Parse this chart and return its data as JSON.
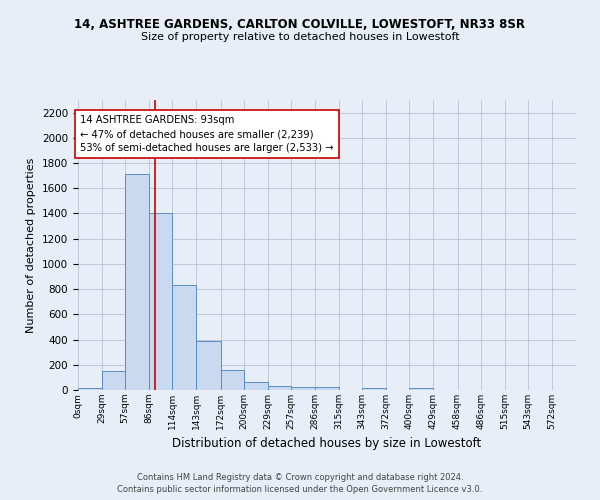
{
  "title1": "14, ASHTREE GARDENS, CARLTON COLVILLE, LOWESTOFT, NR33 8SR",
  "title2": "Size of property relative to detached houses in Lowestoft",
  "xlabel": "Distribution of detached houses by size in Lowestoft",
  "ylabel": "Number of detached properties",
  "bar_labels": [
    "0sqm",
    "29sqm",
    "57sqm",
    "86sqm",
    "114sqm",
    "143sqm",
    "172sqm",
    "200sqm",
    "229sqm",
    "257sqm",
    "286sqm",
    "315sqm",
    "343sqm",
    "372sqm",
    "400sqm",
    "429sqm",
    "458sqm",
    "486sqm",
    "515sqm",
    "543sqm",
    "572sqm"
  ],
  "bar_values": [
    15,
    150,
    1710,
    1400,
    830,
    385,
    160,
    65,
    35,
    25,
    22,
    0,
    18,
    0,
    12,
    0,
    0,
    0,
    0,
    0,
    0
  ],
  "bin_edges": [
    0,
    29,
    57,
    86,
    114,
    143,
    172,
    200,
    229,
    257,
    286,
    315,
    343,
    372,
    400,
    429,
    458,
    486,
    515,
    543,
    572,
    601
  ],
  "bar_color": "#c9d9f0",
  "bar_edge_color": "#5b8ec4",
  "property_value": 93,
  "red_line_color": "#cc0000",
  "annotation_text": "14 ASHTREE GARDENS: 93sqm\n← 47% of detached houses are smaller (2,239)\n53% of semi-detached houses are larger (2,533) →",
  "annotation_box_color": "#ffffff",
  "annotation_box_edge": "#cc0000",
  "ylim": [
    0,
    2300
  ],
  "yticks": [
    0,
    200,
    400,
    600,
    800,
    1000,
    1200,
    1400,
    1600,
    1800,
    2000,
    2200
  ],
  "background_color": "#e8eef8",
  "footer_line1": "Contains HM Land Registry data © Crown copyright and database right 2024.",
  "footer_line2": "Contains public sector information licensed under the Open Government Licence v3.0."
}
